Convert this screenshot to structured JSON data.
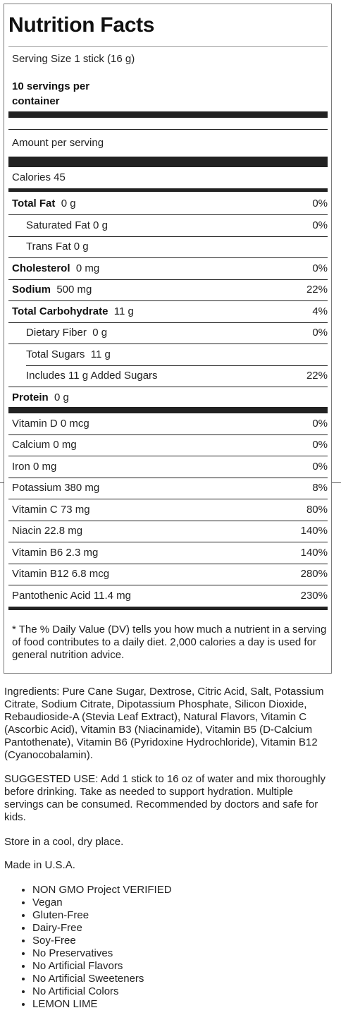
{
  "panel": {
    "title": "Nutrition Facts",
    "serving_size": "Serving Size 1 stick (16 g)",
    "servings_line1": "10 servings per",
    "servings_line2": "container",
    "amount_per_serving": "Amount per serving",
    "calories": "Calories 45",
    "rows": [
      {
        "bold": "Total Fat",
        "value": "0 g",
        "dv": "0%"
      },
      {
        "label": "Saturated Fat 0 g",
        "dv": "0%"
      },
      {
        "label": "Trans Fat 0 g",
        "dv": ""
      },
      {
        "bold": "Cholesterol",
        "value": "0 mg",
        "dv": "0%"
      },
      {
        "bold": "Sodium",
        "value": "500 mg",
        "dv": "22%"
      },
      {
        "bold": "Total Carbohydrate",
        "value": "11 g",
        "dv": "4%"
      },
      {
        "label": "Dietary Fiber  0 g",
        "dv": "0%"
      },
      {
        "label": "Total Sugars  11 g",
        "dv": ""
      },
      {
        "label": "Includes 11 g Added Sugars",
        "dv": "22%"
      },
      {
        "bold": "Protein",
        "value": "0 g",
        "dv": ""
      }
    ],
    "vitamins": [
      {
        "label": "Vitamin D 0 mcg",
        "dv": "0%"
      },
      {
        "label": "Calcium 0 mg",
        "dv": "0%"
      },
      {
        "label": "Iron 0 mg",
        "dv": "0%"
      },
      {
        "label": "Potassium 380 mg",
        "dv": "8%"
      },
      {
        "label": "Vitamin C 73 mg",
        "dv": "80%"
      },
      {
        "label": "Niacin 22.8 mg",
        "dv": "140%"
      },
      {
        "label": "Vitamin B6 2.3 mg",
        "dv": "140%"
      },
      {
        "label": "Vitamin B12 6.8 mcg",
        "dv": "280%"
      },
      {
        "label": "Pantothenic Acid 11.4 mg",
        "dv": "230%"
      }
    ],
    "footnote": "* The % Daily Value (DV) tells you how much a nutrient in a serving of food contributes to a daily diet. 2,000 calories a day is used for general nutrition advice."
  },
  "ingredients": "Ingredients: Pure Cane Sugar, Dextrose, Citric Acid, Salt, Potassium Citrate, Sodium Citrate, Dipotassium Phosphate, Silicon Dioxide, Rebaudioside-A (Stevia Leaf Extract), Natural Flavors, Vitamin C (Ascorbic Acid), Vitamin B3 (Niacinamide), Vitamin B5 (D-Calcium Pantothenate), Vitamin B6 (Pyridoxine Hydrochloride), Vitamin B12 (Cyanocobalamin).",
  "suggested_use": "SUGGESTED USE: Add 1 stick to 16 oz of water and mix thoroughly before drinking. Take as needed to support hydration. Multiple servings can be consumed. Recommended by doctors and safe for kids.",
  "storage": "Store in a cool, dry place.",
  "origin": "Made in U.S.A.",
  "claims": [
    "NON GMO Project VERIFIED",
    "Vegan",
    "Gluten-Free",
    "Dairy-Free",
    "Soy-Free",
    "No Preservatives",
    "No Artificial Flavors",
    "No Artificial Sweeteners",
    "No Artificial Colors",
    "LEMON LIME"
  ],
  "colors": {
    "text": "#222222",
    "rule": "#222222",
    "border": "#7a7a7a",
    "background": "#ffffff"
  }
}
